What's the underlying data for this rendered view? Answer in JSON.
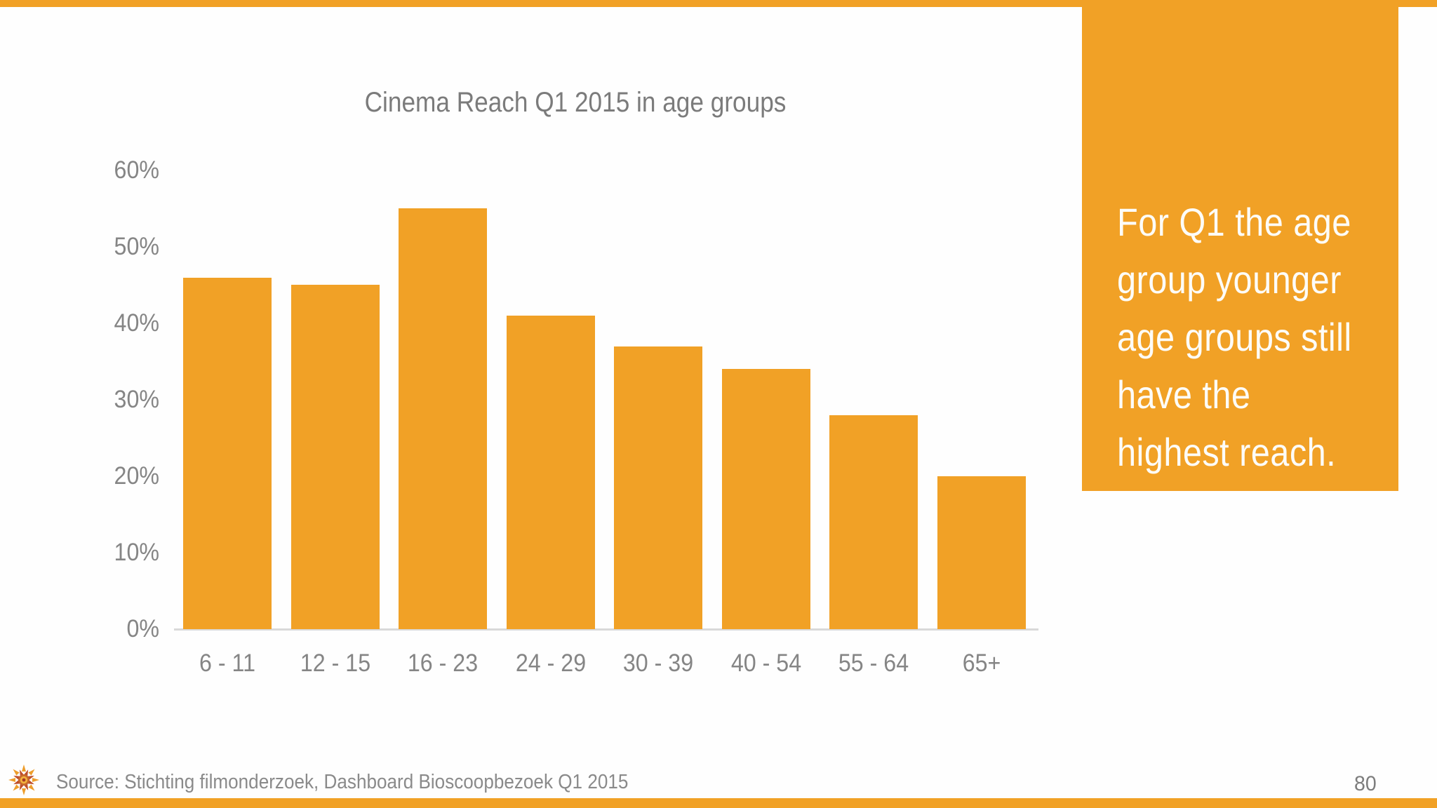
{
  "colors": {
    "accent_orange": "#F1A126",
    "bar_orange": "#F1A126",
    "title_gray": "#7b7b7b",
    "axis_label_gray": "#858585",
    "axis_line_gray": "#d9d9d9",
    "footer_gray": "#8a8a8a",
    "callout_text": "#fdfcf8"
  },
  "chart_data": {
    "type": "bar",
    "title": "Cinema Reach Q1 2015 in age groups",
    "categories": [
      "6 - 11",
      "12 - 15",
      "16 - 23",
      "24 - 29",
      "30 - 39",
      "40 - 54",
      "55 - 64",
      "65+"
    ],
    "values": [
      46,
      45,
      55,
      41,
      37,
      34,
      28,
      20
    ],
    "unit": "%",
    "xlabel": "",
    "ylabel": "",
    "ylim": [
      0,
      60
    ],
    "ytick_step": 10,
    "ytick_labels": [
      "0%",
      "10%",
      "20%",
      "30%",
      "40%",
      "50%",
      "60%"
    ],
    "grid": false,
    "legend": null,
    "bar_color": "#F1A126"
  },
  "callout": {
    "lines": [
      "For Q1 the age",
      "group younger",
      "age groups still",
      "have the",
      "highest reach."
    ],
    "full_text": "For Q1 the age group younger age groups still have the highest reach."
  },
  "footer": {
    "source_text": "Source: Stichting filmonderzoek, Dashboard Bioscoopbezoek Q1 2015",
    "page_number": "80",
    "logo": "sun-mandala-logo"
  }
}
